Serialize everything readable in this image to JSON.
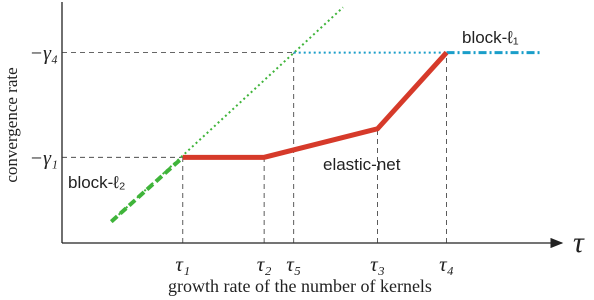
{
  "chart_data": {
    "type": "line",
    "xlabel": "growth rate of the number of kernels",
    "ylabel": "convergence rate",
    "x_symbol": "τ",
    "xlim": [
      0,
      10
    ],
    "ylim": [
      0,
      10
    ],
    "xticks": [
      {
        "value": 2.45,
        "label": "τ₁"
      },
      {
        "value": 4.1,
        "label": "τ₂"
      },
      {
        "value": 4.7,
        "label": "τ₅"
      },
      {
        "value": 6.4,
        "label": "τ₃"
      },
      {
        "value": 7.8,
        "label": "τ₄"
      }
    ],
    "yticks": [
      {
        "value": 3.6,
        "label": "−γ₁"
      },
      {
        "value": 8.0,
        "label": "−γ₄"
      }
    ],
    "series": [
      {
        "color": "#3fb43a",
        "style": "dotted",
        "x": [
          1.0,
          5.7
        ],
        "values": [
          0.9,
          9.9
        ]
      },
      {
        "color": "#1a9ec9",
        "style": "dotted",
        "x": [
          4.7,
          7.8
        ],
        "values": [
          8.0,
          8.0
        ]
      },
      {
        "name": "block-ℓ₂",
        "color": "#3fb43a",
        "style": "dashed",
        "x": [
          1.0,
          2.45
        ],
        "values": [
          0.9,
          3.6
        ]
      },
      {
        "name": "block-ℓ₁",
        "color": "#1a9ec9",
        "style": "dashdot",
        "x": [
          7.8,
          9.7
        ],
        "values": [
          8.0,
          8.0
        ]
      },
      {
        "name": "elastic-net",
        "color": "#d63a2a",
        "style": "solid",
        "x": [
          2.45,
          4.1,
          6.4,
          7.8
        ],
        "values": [
          3.6,
          3.6,
          4.8,
          8.0
        ]
      }
    ]
  }
}
